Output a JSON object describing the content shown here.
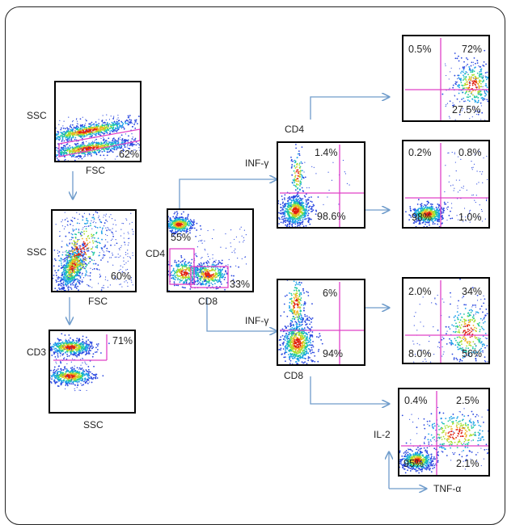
{
  "colors": {
    "gate": "#e040c8",
    "arrow": "#6f9ccb",
    "frame": "#222222",
    "dots_low": "#1b3dd8",
    "dots_high": "#d02010"
  },
  "panels": {
    "scatter": {
      "ylabel": "SSC",
      "xlabel": "FSC",
      "p1": "62%"
    },
    "singlets": {
      "ylabel": "SSC",
      "xlabel": "FSC",
      "p1": "60%"
    },
    "cd3": {
      "ylabel": "CD3",
      "xlabel": "SSC",
      "p1": "71%"
    },
    "cd4cd8": {
      "ylabel": "CD4",
      "xlabel": "CD8",
      "p_cd4": "55%",
      "p_cd8": "33%"
    },
    "cd4_inf": {
      "ylabel": "INF-γ",
      "xlabel": "CD4",
      "p_hi": "1.4%",
      "p_lo": "98.6%"
    },
    "cd8_inf": {
      "ylabel": "INF-γ",
      "xlabel": "CD8",
      "p_hi": "6%",
      "p_lo": "94%"
    },
    "q1": {
      "ul": "0.5%",
      "ur": "72%",
      "lr": "27.5%"
    },
    "q2": {
      "ul": "0.2%",
      "ur": "0.8%",
      "ll": "98%",
      "lr": "1.0%"
    },
    "q3": {
      "ul": "2.0%",
      "ur": "34%",
      "ll": "8.0%",
      "lr": "56%"
    },
    "q4": {
      "ul": "0.4%",
      "ur": "2.5%",
      "ll": "95%",
      "lr": "2.1%"
    },
    "axes": {
      "y": "IL-2",
      "x": "TNF-α"
    }
  }
}
